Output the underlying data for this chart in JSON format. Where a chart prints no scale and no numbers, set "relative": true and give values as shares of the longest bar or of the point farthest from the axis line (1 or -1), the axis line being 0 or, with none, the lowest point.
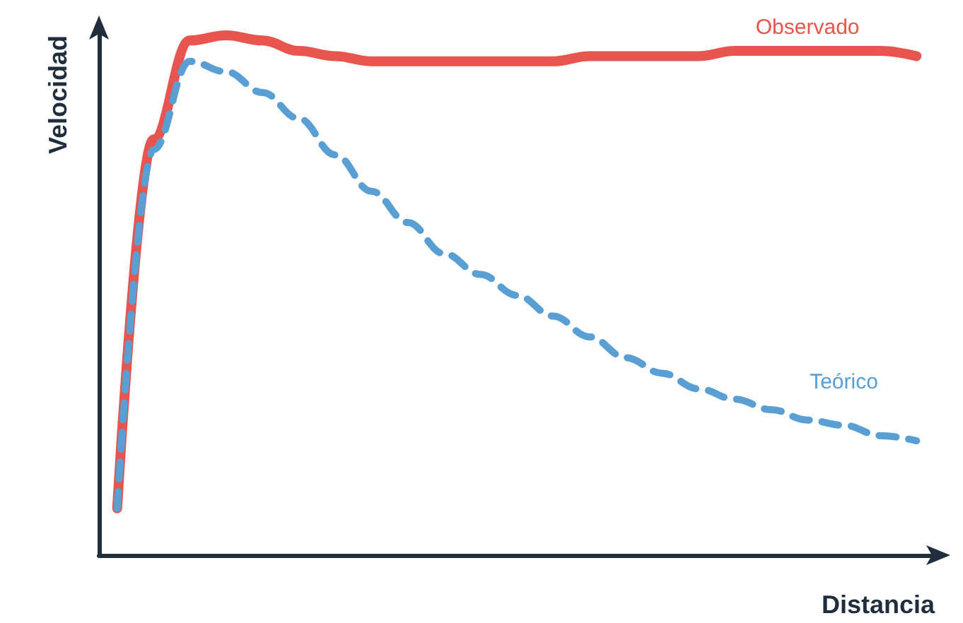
{
  "chart_data": {
    "type": "line",
    "relative": true,
    "xlabel": "Distancia",
    "ylabel": "Velocidad",
    "legend": false,
    "grid": false,
    "marker": "none",
    "categories": [
      null,
      null,
      null,
      null,
      null,
      null,
      null,
      null,
      null,
      null,
      null,
      null,
      null,
      null,
      null,
      null,
      null,
      null,
      null,
      null,
      null,
      null,
      null
    ],
    "series": [
      {
        "name": "Observado",
        "color": "#e8554e",
        "line_style": "solid",
        "values": [
          0.09,
          0.8,
          0.99,
          1.0,
          0.99,
          0.97,
          0.96,
          0.95,
          0.95,
          0.95,
          0.95,
          0.95,
          0.95,
          0.96,
          0.96,
          0.96,
          0.96,
          0.97,
          0.97,
          0.97,
          0.97,
          0.97,
          0.96
        ]
      },
      {
        "name": "Teórico",
        "color": "#5a9fd4",
        "line_style": "dashed",
        "values": [
          0.09,
          0.78,
          0.95,
          0.93,
          0.89,
          0.84,
          0.77,
          0.7,
          0.64,
          0.58,
          0.54,
          0.5,
          0.46,
          0.42,
          0.38,
          0.35,
          0.32,
          0.3,
          0.28,
          0.26,
          0.25,
          0.23,
          0.22
        ]
      }
    ]
  }
}
